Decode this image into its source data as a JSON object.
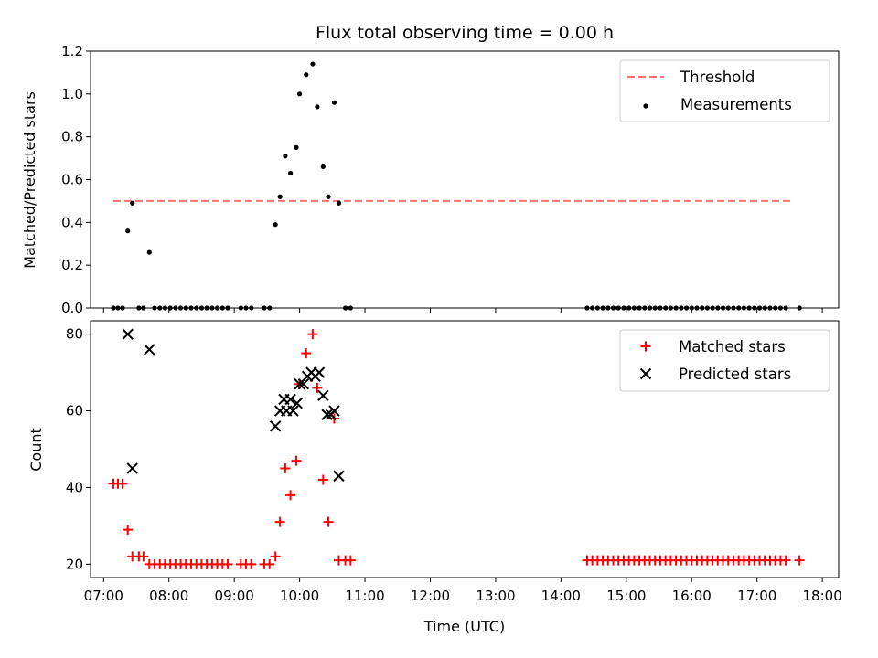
{
  "chart_data": [
    {
      "type": "scatter",
      "title": "Flux total observing time = 0.00 h",
      "ylabel": "Matched/Predicted stars",
      "xlabel": "",
      "xlim": [
        6.8,
        18.25
      ],
      "ylim": [
        0.0,
        1.2
      ],
      "yticks": [
        0.0,
        0.2,
        0.4,
        0.6,
        0.8,
        1.0,
        1.2
      ],
      "ytick_labels": [
        "0.0",
        "0.2",
        "0.4",
        "0.6",
        "0.8",
        "1.0",
        "1.2"
      ],
      "grid": false,
      "legend": {
        "placement": "top-right",
        "entries": [
          {
            "name": "Threshold",
            "style": "dashed-line",
            "color": "#ff7070"
          },
          {
            "name": "Measurements",
            "style": "dot",
            "color": "#000000"
          }
        ]
      },
      "series": [
        {
          "name": "Threshold",
          "style": "dashed-line",
          "color": "#ff7070",
          "x": [
            7.15,
            17.55
          ],
          "y": [
            0.5,
            0.5
          ]
        },
        {
          "name": "Measurements",
          "style": "dot",
          "color": "#000000",
          "x": [
            7.15,
            7.22,
            7.29,
            7.37,
            7.44,
            7.54,
            7.61,
            7.7,
            7.78,
            7.86,
            7.94,
            8.02,
            8.1,
            8.18,
            8.26,
            8.34,
            8.42,
            8.5,
            8.58,
            8.66,
            8.74,
            8.82,
            8.9,
            9.1,
            9.18,
            9.26,
            9.46,
            9.54,
            9.63,
            9.7,
            9.78,
            9.86,
            9.95,
            10.0,
            10.1,
            10.2,
            10.27,
            10.36,
            10.44,
            10.53,
            10.6,
            10.7,
            10.78,
            14.4,
            14.48,
            14.56,
            14.64,
            14.72,
            14.8,
            14.88,
            14.96,
            15.04,
            15.12,
            15.2,
            15.28,
            15.36,
            15.44,
            15.52,
            15.6,
            15.68,
            15.76,
            15.84,
            15.92,
            16.0,
            16.08,
            16.16,
            16.24,
            16.32,
            16.4,
            16.48,
            16.56,
            16.64,
            16.72,
            16.8,
            16.88,
            16.96,
            17.04,
            17.12,
            17.2,
            17.28,
            17.36,
            17.44,
            17.65
          ],
          "y": [
            0.0,
            0.0,
            0.0,
            0.36,
            0.49,
            0.0,
            0.0,
            0.26,
            0.0,
            0.0,
            0.0,
            0.0,
            0.0,
            0.0,
            0.0,
            0.0,
            0.0,
            0.0,
            0.0,
            0.0,
            0.0,
            0.0,
            0.0,
            0.0,
            0.0,
            0.0,
            0.0,
            0.0,
            0.39,
            0.52,
            0.71,
            0.63,
            0.75,
            1.0,
            1.09,
            1.14,
            0.94,
            0.66,
            0.52,
            0.96,
            0.49,
            0.0,
            0.0,
            0.0,
            0.0,
            0.0,
            0.0,
            0.0,
            0.0,
            0.0,
            0.0,
            0.0,
            0.0,
            0.0,
            0.0,
            0.0,
            0.0,
            0.0,
            0.0,
            0.0,
            0.0,
            0.0,
            0.0,
            0.0,
            0.0,
            0.0,
            0.0,
            0.0,
            0.0,
            0.0,
            0.0,
            0.0,
            0.0,
            0.0,
            0.0,
            0.0,
            0.0,
            0.0,
            0.0,
            0.0,
            0.0,
            0.0,
            0.0
          ]
        }
      ]
    },
    {
      "type": "scatter",
      "title": "",
      "ylabel": "Count",
      "xlabel": "Time (UTC)",
      "xlim": [
        6.8,
        18.25
      ],
      "ylim": [
        16.5,
        83.5
      ],
      "yticks": [
        20,
        40,
        60,
        80
      ],
      "ytick_labels": [
        "20",
        "40",
        "60",
        "80"
      ],
      "xticks": [
        7,
        8,
        9,
        10,
        11,
        12,
        13,
        14,
        15,
        16,
        17,
        18
      ],
      "xtick_labels": [
        "07:00",
        "08:00",
        "09:00",
        "10:00",
        "11:00",
        "12:00",
        "13:00",
        "14:00",
        "15:00",
        "16:00",
        "17:00",
        "18:00"
      ],
      "grid": false,
      "legend": {
        "placement": "top-right",
        "entries": [
          {
            "name": "Matched stars",
            "style": "plus",
            "color": "#ff0000"
          },
          {
            "name": "Predicted stars",
            "style": "x",
            "color": "#000000"
          }
        ]
      },
      "series": [
        {
          "name": "Matched stars",
          "style": "plus",
          "color": "#ff0000",
          "x": [
            7.15,
            7.22,
            7.29,
            7.37,
            7.44,
            7.54,
            7.61,
            7.7,
            7.78,
            7.86,
            7.94,
            8.02,
            8.1,
            8.18,
            8.26,
            8.34,
            8.42,
            8.5,
            8.58,
            8.66,
            8.74,
            8.82,
            8.9,
            9.1,
            9.18,
            9.26,
            9.46,
            9.54,
            9.63,
            9.7,
            9.78,
            9.86,
            9.95,
            10.0,
            10.1,
            10.2,
            10.27,
            10.36,
            10.44,
            10.53,
            10.6,
            10.7,
            10.78,
            14.4,
            14.48,
            14.56,
            14.64,
            14.72,
            14.8,
            14.88,
            14.96,
            15.04,
            15.12,
            15.2,
            15.28,
            15.36,
            15.44,
            15.52,
            15.6,
            15.68,
            15.76,
            15.84,
            15.92,
            16.0,
            16.08,
            16.16,
            16.24,
            16.32,
            16.4,
            16.48,
            16.56,
            16.64,
            16.72,
            16.8,
            16.88,
            16.96,
            17.04,
            17.12,
            17.2,
            17.28,
            17.36,
            17.44,
            17.65
          ],
          "y": [
            41,
            41,
            41,
            29,
            22,
            22,
            22,
            20,
            20,
            20,
            20,
            20,
            20,
            20,
            20,
            20,
            20,
            20,
            20,
            20,
            20,
            20,
            20,
            20,
            20,
            20,
            20,
            20,
            22,
            31,
            45,
            38,
            47,
            67,
            75,
            80,
            66,
            42,
            31,
            58,
            21,
            21,
            21,
            21,
            21,
            21,
            21,
            21,
            21,
            21,
            21,
            21,
            21,
            21,
            21,
            21,
            21,
            21,
            21,
            21,
            21,
            21,
            21,
            21,
            21,
            21,
            21,
            21,
            21,
            21,
            21,
            21,
            21,
            21,
            21,
            21,
            21,
            21,
            21,
            21,
            21,
            21,
            21
          ]
        },
        {
          "name": "Predicted stars",
          "style": "x",
          "color": "#000000",
          "x": [
            7.37,
            7.44,
            7.7,
            9.63,
            9.7,
            9.76,
            9.8,
            9.86,
            9.9,
            9.96,
            10.0,
            10.06,
            10.12,
            10.18,
            10.24,
            10.3,
            10.36,
            10.42,
            10.48,
            10.53,
            10.6
          ],
          "y": [
            80,
            45,
            76,
            56,
            60,
            63,
            60,
            63,
            60,
            62,
            67,
            67,
            69,
            70,
            69,
            70,
            64,
            59,
            59,
            60,
            43
          ]
        }
      ]
    }
  ]
}
